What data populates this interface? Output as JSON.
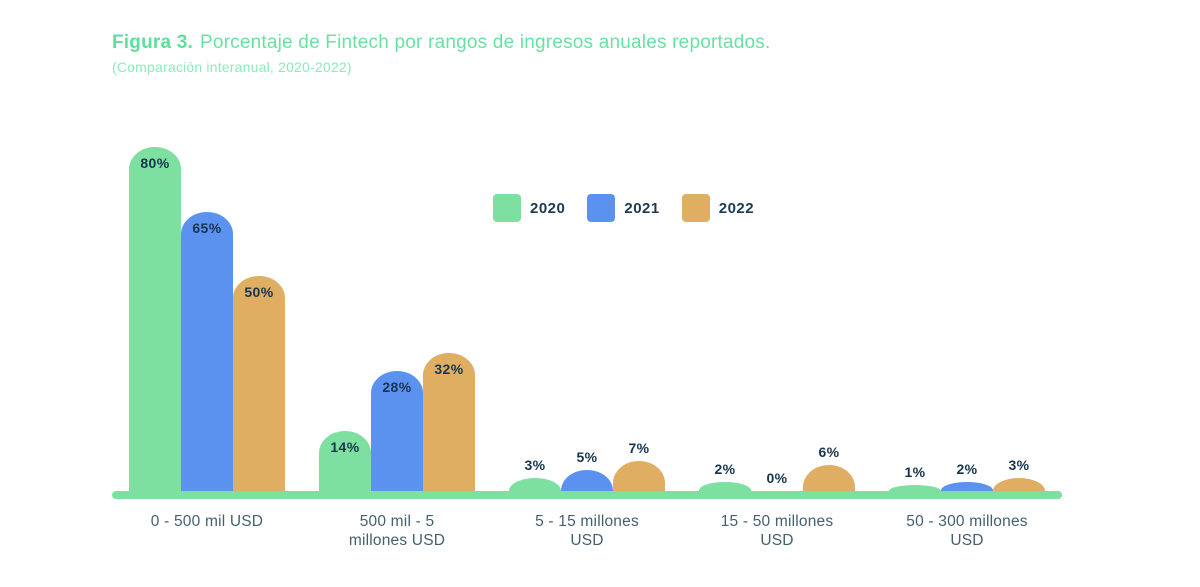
{
  "figure": {
    "title_prefix": "Figura 3.",
    "title_text": "Porcentaje de Fintech por rangos de ingresos anuales reportados.",
    "subtitle": "(Comparación interanual, 2020-2022)"
  },
  "colors": {
    "title_green": "#68e2a2",
    "subtitle_green": "#8ceabb",
    "value_label_navy": "#17354e",
    "axis_label_slate": "#44606f",
    "baseline_green": "#7ee0a0",
    "series_2020": "#7ee0a0",
    "series_2021": "#5b92f0",
    "series_2022": "#dfae63"
  },
  "chart_data": {
    "type": "bar",
    "title": "Porcentaje de Fintech por rangos de ingresos anuales reportados.",
    "subtitle": "(Comparación interanual, 2020-2022)",
    "categories": [
      "0 - 500 mil USD",
      "500 mil - 5\nmillones USD",
      "5 - 15 millones\nUSD",
      "15 - 50 millones\nUSD",
      "50 - 300 millones\nUSD"
    ],
    "series": [
      {
        "name": "2020",
        "color": "#7ee0a0",
        "values": [
          80,
          14,
          3,
          2,
          1
        ]
      },
      {
        "name": "2021",
        "color": "#5b92f0",
        "values": [
          65,
          28,
          5,
          0,
          2
        ]
      },
      {
        "name": "2022",
        "color": "#dfae63",
        "values": [
          50,
          32,
          7,
          6,
          3
        ]
      }
    ],
    "value_suffix": "%",
    "xlabel": "",
    "ylabel": "",
    "ylim": [
      0,
      80
    ],
    "grid": false,
    "legend_position": "top-center",
    "value_labels_shown": true
  }
}
